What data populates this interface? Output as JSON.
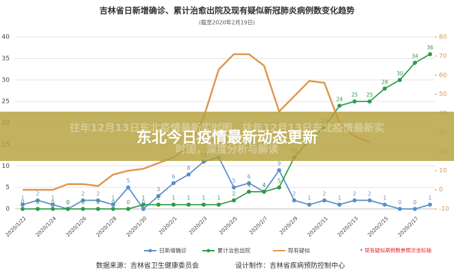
{
  "chart_data": {
    "type": "line",
    "title": "吉林省日新增确诊、累计治愈出院及现有疑似新冠肺炎病例数变化趋势",
    "subtitle": "(截至2020年2月19日)",
    "categories": [
      "2020/1/22",
      null,
      "2020/1/24",
      null,
      "2020/1/26",
      null,
      "2020/1/28",
      null,
      "2020/1/30",
      null,
      "2020/2/1",
      null,
      "2020/2/3",
      null,
      "2020/2/5",
      null,
      "2020/2/7",
      null,
      "2020/2/9",
      null,
      "2020/2/11",
      null,
      "2020/2/13",
      null,
      "2020/2/15",
      null,
      "2020/2/17",
      null
    ],
    "series": [
      {
        "name": "日新增确诊",
        "color": "#5b8fc9",
        "values": [
          1,
          2,
          1,
          0,
          2,
          2,
          1,
          5,
          0,
          3,
          6,
          8,
          11,
          12,
          5,
          6,
          4,
          9,
          2,
          1,
          2,
          1,
          2,
          2,
          1,
          0,
          0,
          1
        ]
      },
      {
        "name": "累计治愈出院",
        "color": "#2e9b4a",
        "values": [
          0,
          0,
          0,
          0,
          0,
          0,
          0,
          0,
          1,
          1,
          1,
          1,
          1,
          1,
          2,
          4,
          4,
          5,
          12,
          16,
          19,
          24,
          25,
          25,
          28,
          30,
          34,
          36
        ]
      },
      {
        "name": "现有疑似",
        "color": "#e0954a",
        "axis": "y2",
        "values": [
          0,
          0,
          0,
          3,
          3,
          2,
          8,
          10,
          11,
          14,
          17,
          22,
          38,
          63,
          71,
          71,
          65,
          41,
          49,
          57,
          56,
          35,
          28,
          25,
          null,
          null,
          null,
          null
        ]
      }
    ],
    "ylim": [
      0,
      40
    ],
    "yticks": [
      0,
      5,
      10,
      15,
      20,
      25,
      30,
      35,
      40
    ],
    "y2lim": [
      -10,
      80
    ],
    "y2ticks": [
      -10,
      0,
      10,
      20,
      30,
      40,
      50,
      60,
      70,
      80
    ],
    "grid": true,
    "note": "• 现有疑似病例数参照次坐标轴"
  },
  "footer": {
    "source": "数据来源：吉林省卫生健康委员会",
    "design": "设计制作：吉林省疾病预防控制中心"
  },
  "banner": {
    "faded_line1": "往年12月13日东北疫情最新实时图，往年12月13日东北疫情最新实",
    "faded_line2": "时图，深度分析与解读",
    "headline": "东北今日疫情最新动态更新"
  }
}
